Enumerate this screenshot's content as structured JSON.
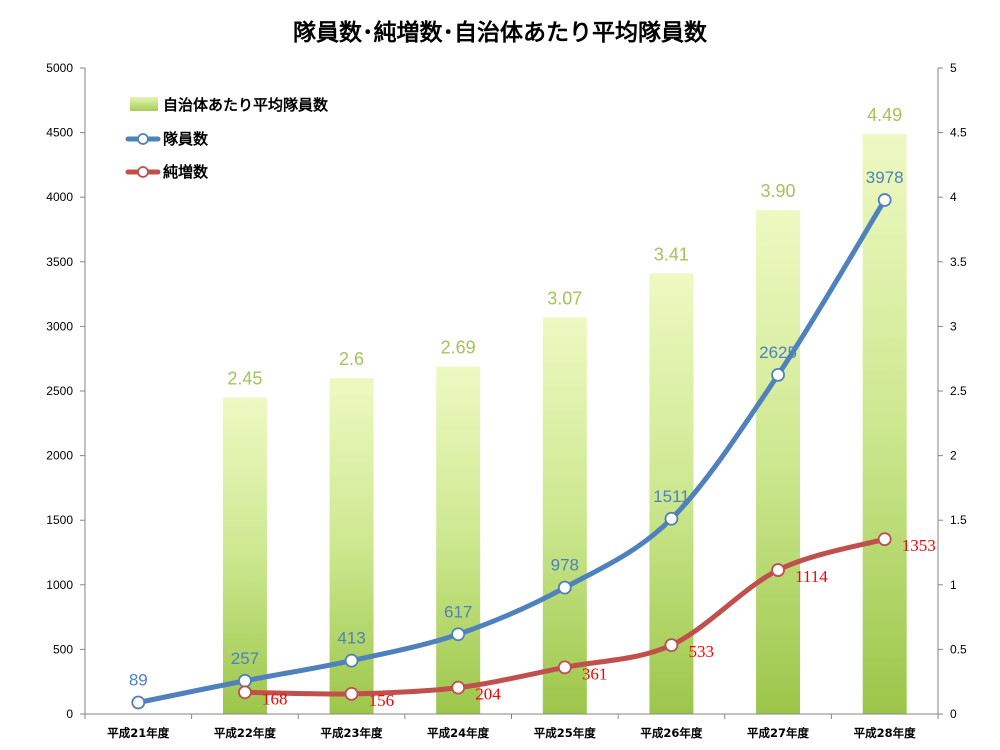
{
  "chart_data": {
    "type": "bar+line",
    "title": "隊員数･純増数･自治体あたり平均隊員数",
    "categories": [
      "平成21年度",
      "平成22年度",
      "平成23年度",
      "平成24年度",
      "平成25年度",
      "平成26年度",
      "平成27年度",
      "平成28年度"
    ],
    "bar_series": {
      "name": "自治体あたり平均隊員数",
      "axis": "right",
      "values": [
        null,
        2.45,
        2.6,
        2.69,
        3.07,
        3.41,
        3.9,
        4.49
      ],
      "labels": [
        "",
        "2.45",
        "2.6",
        "2.69",
        "3.07",
        "3.41",
        "3.90",
        "4.49"
      ],
      "color": "#a3c35b"
    },
    "line_series": [
      {
        "name": "隊員数",
        "axis": "left",
        "values": [
          89,
          257,
          413,
          617,
          978,
          1511,
          2625,
          3978
        ],
        "labels": [
          "89",
          "257",
          "413",
          "617",
          "978",
          "1511",
          "2625",
          "3978"
        ],
        "color": "#4f81bd",
        "label_color": "#4f81bd"
      },
      {
        "name": "純増数",
        "axis": "left",
        "values": [
          null,
          168,
          156,
          204,
          361,
          533,
          1114,
          1353
        ],
        "labels": [
          "",
          "168",
          "156",
          "204",
          "361",
          "533",
          "1114",
          "1353"
        ],
        "color": "#c0504d",
        "label_color": "#ff0000"
      }
    ],
    "y_left": {
      "min": 0,
      "max": 5000,
      "step": 500,
      "ticks": [
        "0",
        "500",
        "1000",
        "1500",
        "2000",
        "2500",
        "3000",
        "3500",
        "4000",
        "4500",
        "5000"
      ]
    },
    "y_right": {
      "min": 0,
      "max": 5,
      "step": 0.5,
      "ticks": [
        "0",
        "0.5",
        "1",
        "1.5",
        "2",
        "2.5",
        "3",
        "3.5",
        "4",
        "4.5",
        "5"
      ]
    },
    "grid": false,
    "legend_position": "top-left"
  }
}
